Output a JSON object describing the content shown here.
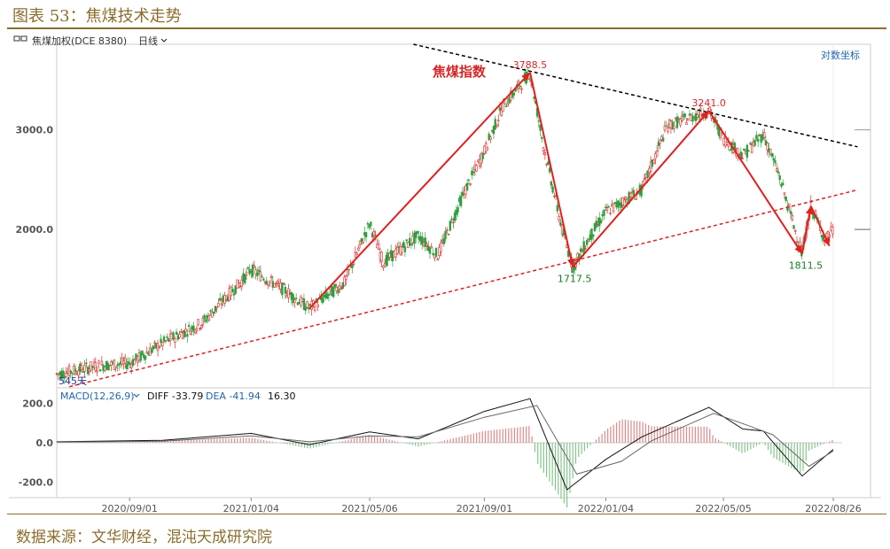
{
  "figure_title": "图表 53：焦煤技术走势",
  "source": "数据来源：文华财经，混沌天成研究院",
  "header": {
    "instrument": "焦煤加权(DCE 8380)",
    "period": "日线",
    "log_scale_label": "对数坐标"
  },
  "annotations": {
    "chart_label": "焦煤指数",
    "days_label": "545天",
    "peak1": "3788.5",
    "trough1": "1717.5",
    "peak2": "3241.0",
    "trough2": "1811.5"
  },
  "macd": {
    "label": "MACD(12,26,9)",
    "diff_label": "DIFF -33.79",
    "dea_label": "DEA -41.94",
    "macd_value": "16.30"
  },
  "colors": {
    "up": "#d62728",
    "down": "#2e9e3e",
    "wave": "#e02020",
    "support": "#e02020",
    "resistance": "#000000",
    "axis_text": "#555555",
    "frame": "#8a6d2c"
  },
  "chart_data": [
    {
      "type": "line",
      "title": "焦煤指数",
      "scale": "log",
      "ylim": [
        1050,
        4250
      ],
      "y_ticks": [
        2000,
        3000
      ],
      "y_tick_labels": [
        "2000.0",
        "3000.0"
      ],
      "x_tick_labels": [
        "2020/09/01",
        "2021/01/04",
        "2021/05/06",
        "2021/09/01",
        "2022/01/04",
        "2022/05/05",
        "2022/08/26"
      ],
      "x_range": [
        "2020-06-18",
        "2022-08-26"
      ],
      "price_path": [
        {
          "date": "2020-06-18",
          "value": 1110
        },
        {
          "date": "2020-08-01",
          "value": 1150
        },
        {
          "date": "2020-09-01",
          "value": 1160
        },
        {
          "date": "2020-10-05",
          "value": 1260
        },
        {
          "date": "2020-11-15",
          "value": 1370
        },
        {
          "date": "2020-12-25",
          "value": 1620
        },
        {
          "date": "2021-01-04",
          "value": 1700
        },
        {
          "date": "2021-02-08",
          "value": 1560
        },
        {
          "date": "2021-03-05",
          "value": 1450
        },
        {
          "date": "2021-04-10",
          "value": 1610
        },
        {
          "date": "2021-05-06",
          "value": 2050
        },
        {
          "date": "2021-05-20",
          "value": 1750
        },
        {
          "date": "2021-06-25",
          "value": 1950
        },
        {
          "date": "2021-07-15",
          "value": 1800
        },
        {
          "date": "2021-08-10",
          "value": 2300
        },
        {
          "date": "2021-09-01",
          "value": 2750
        },
        {
          "date": "2021-09-20",
          "value": 3300
        },
        {
          "date": "2021-10-18",
          "value": 3788.5
        },
        {
          "date": "2021-11-01",
          "value": 2800
        },
        {
          "date": "2021-11-20",
          "value": 2000
        },
        {
          "date": "2021-12-01",
          "value": 1717.5
        },
        {
          "date": "2021-12-20",
          "value": 1960
        },
        {
          "date": "2022-01-04",
          "value": 2150
        },
        {
          "date": "2022-02-10",
          "value": 2350
        },
        {
          "date": "2022-03-08",
          "value": 3050
        },
        {
          "date": "2022-04-20",
          "value": 3241
        },
        {
          "date": "2022-05-05",
          "value": 2900
        },
        {
          "date": "2022-05-25",
          "value": 2700
        },
        {
          "date": "2022-06-15",
          "value": 2950
        },
        {
          "date": "2022-07-01",
          "value": 2500
        },
        {
          "date": "2022-07-25",
          "value": 1811.5
        },
        {
          "date": "2022-08-03",
          "value": 2200
        },
        {
          "date": "2022-08-18",
          "value": 1920
        },
        {
          "date": "2022-08-26",
          "value": 2000
        }
      ],
      "wave_path": [
        {
          "date": "2021-03-05",
          "value": 1450
        },
        {
          "date": "2021-10-18",
          "value": 3788.5
        },
        {
          "date": "2021-12-01",
          "value": 1717.5
        },
        {
          "date": "2022-04-20",
          "value": 3241
        },
        {
          "date": "2022-07-25",
          "value": 1811.5
        },
        {
          "date": "2022-08-03",
          "value": 2200
        },
        {
          "date": "2022-08-22",
          "value": 1870
        }
      ],
      "support_line": [
        {
          "date": "2020-07-01",
          "value": 1055
        },
        {
          "date": "2022-09-20",
          "value": 2350
        }
      ],
      "resistance_line": [
        {
          "date": "2021-06-20",
          "value": 4250
        },
        {
          "date": "2022-09-20",
          "value": 2800
        }
      ]
    },
    {
      "type": "line",
      "title": "MACD(12,26,9)",
      "ylim": [
        -280,
        280
      ],
      "y_tick_labels": [
        "200.0",
        "0.0",
        "-200.0"
      ],
      "y_ticks": [
        200,
        0,
        -200
      ],
      "series": [
        {
          "name": "DIFF",
          "points": [
            {
              "date": "2020-06-18",
              "value": 5
            },
            {
              "date": "2020-10-05",
              "value": 12
            },
            {
              "date": "2021-01-04",
              "value": 48
            },
            {
              "date": "2021-03-05",
              "value": -10
            },
            {
              "date": "2021-05-06",
              "value": 55
            },
            {
              "date": "2021-06-25",
              "value": 20
            },
            {
              "date": "2021-09-01",
              "value": 160
            },
            {
              "date": "2021-10-18",
              "value": 225
            },
            {
              "date": "2021-11-25",
              "value": -240
            },
            {
              "date": "2022-01-04",
              "value": -85
            },
            {
              "date": "2022-02-10",
              "value": 30
            },
            {
              "date": "2022-04-20",
              "value": 180
            },
            {
              "date": "2022-05-25",
              "value": 70
            },
            {
              "date": "2022-06-15",
              "value": 60
            },
            {
              "date": "2022-07-25",
              "value": -170
            },
            {
              "date": "2022-08-26",
              "value": -34
            }
          ]
        },
        {
          "name": "DEA",
          "points": [
            {
              "date": "2020-06-18",
              "value": 3
            },
            {
              "date": "2020-10-05",
              "value": 8
            },
            {
              "date": "2021-01-04",
              "value": 35
            },
            {
              "date": "2021-03-05",
              "value": 5
            },
            {
              "date": "2021-05-06",
              "value": 35
            },
            {
              "date": "2021-06-25",
              "value": 30
            },
            {
              "date": "2021-09-01",
              "value": 130
            },
            {
              "date": "2021-10-25",
              "value": 190
            },
            {
              "date": "2021-12-05",
              "value": -160
            },
            {
              "date": "2022-01-20",
              "value": -95
            },
            {
              "date": "2022-02-20",
              "value": 10
            },
            {
              "date": "2022-04-25",
              "value": 150
            },
            {
              "date": "2022-06-01",
              "value": 85
            },
            {
              "date": "2022-06-25",
              "value": 40
            },
            {
              "date": "2022-08-01",
              "value": -120
            },
            {
              "date": "2022-08-26",
              "value": -42
            }
          ]
        }
      ]
    }
  ]
}
